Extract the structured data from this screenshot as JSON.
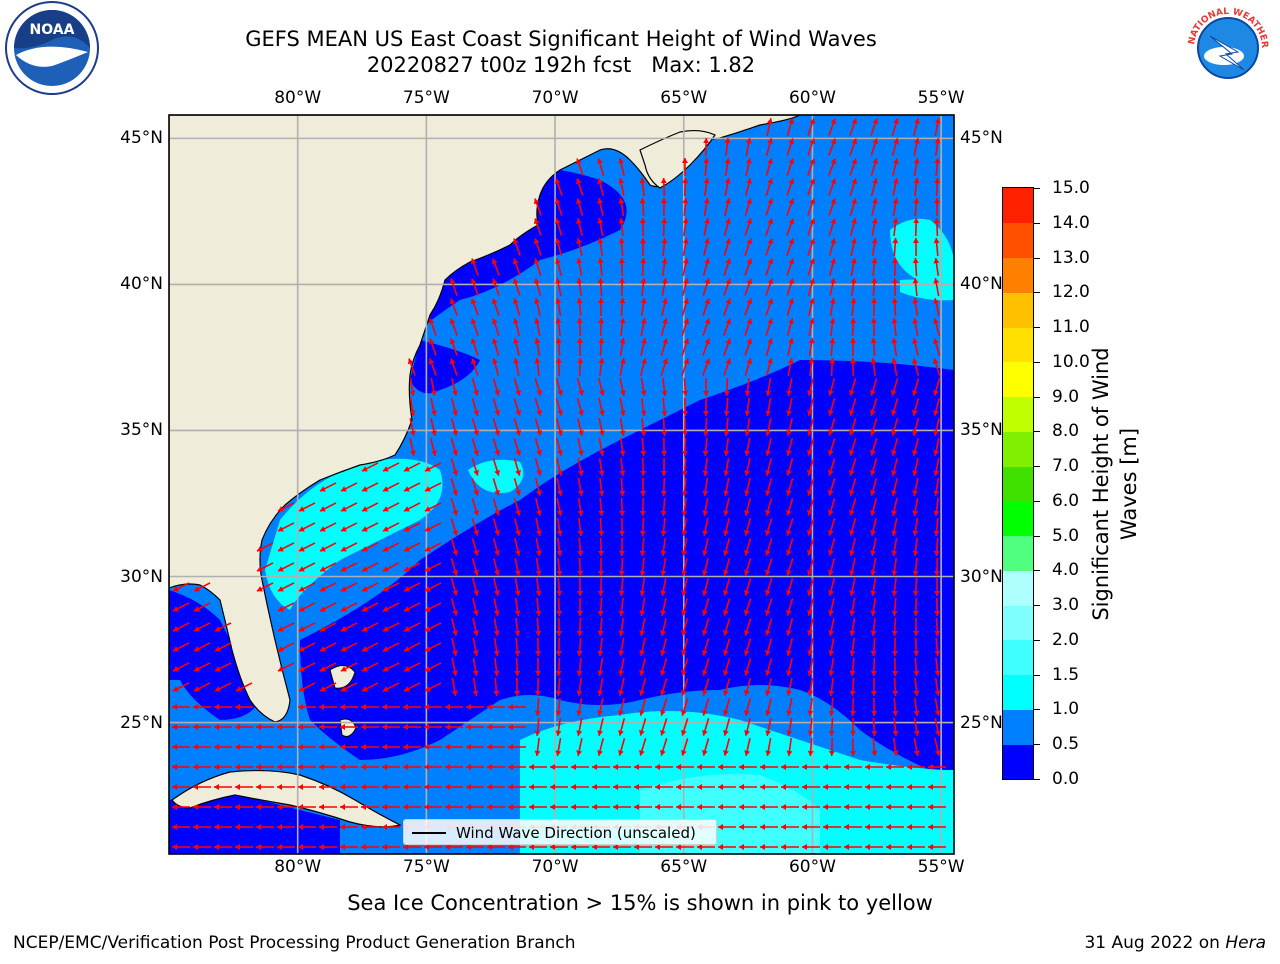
{
  "title": {
    "line1": "GEFS MEAN US East Coast Significant Height of Wind Waves",
    "line2": "20220827 t00z 192h fcst   Max: 1.82"
  },
  "logos": {
    "left": {
      "icon": "noaa-logo-icon",
      "text": "NOAA"
    },
    "right": {
      "icon": "nws-logo-icon",
      "text": "NATIONAL WEATHER SERVICE"
    }
  },
  "map": {
    "lon_ticks": [
      "80°W",
      "75°W",
      "70°W",
      "65°W",
      "60°W",
      "55°W"
    ],
    "lat_ticks": [
      "45°N",
      "40°N",
      "35°N",
      "30°N",
      "25°N"
    ],
    "lon_values": [
      -80,
      -75,
      -70,
      -65,
      -60,
      -55
    ],
    "lat_values": [
      45,
      40,
      35,
      30,
      25
    ],
    "lon_range": [
      -85,
      -54.5
    ],
    "lat_range": [
      20.5,
      45.8
    ],
    "grid": true,
    "arrow_color": "#ff0000",
    "land_color": "#efecda",
    "legend_label": "Wind Wave Direction (unscaled)"
  },
  "colorbar": {
    "title": "Significant Height of Wind Waves [m]",
    "labels": [
      "0.0",
      "0.5",
      "1.0",
      "1.5",
      "2.0",
      "3.0",
      "4.0",
      "5.0",
      "6.0",
      "7.0",
      "8.0",
      "9.0",
      "10.0",
      "11.0",
      "12.0",
      "13.0",
      "14.0",
      "15.0"
    ],
    "colors": [
      "#0000ff",
      "#0080ff",
      "#00ffff",
      "#40ffff",
      "#80ffff",
      "#b0ffff",
      "#50ff80",
      "#00ff00",
      "#40e000",
      "#80f000",
      "#c0ff00",
      "#ffff00",
      "#ffe000",
      "#ffc000",
      "#ff8000",
      "#ff5000",
      "#ff2000",
      "#ff0000"
    ]
  },
  "footer": {
    "ice_note": "Sea Ice Concentration > 15% is shown in pink to yellow",
    "credit": "NCEP/EMC/Verification Post Processing Product Generation Branch",
    "date": "31 Aug 2022 on",
    "machine": "Hera"
  }
}
